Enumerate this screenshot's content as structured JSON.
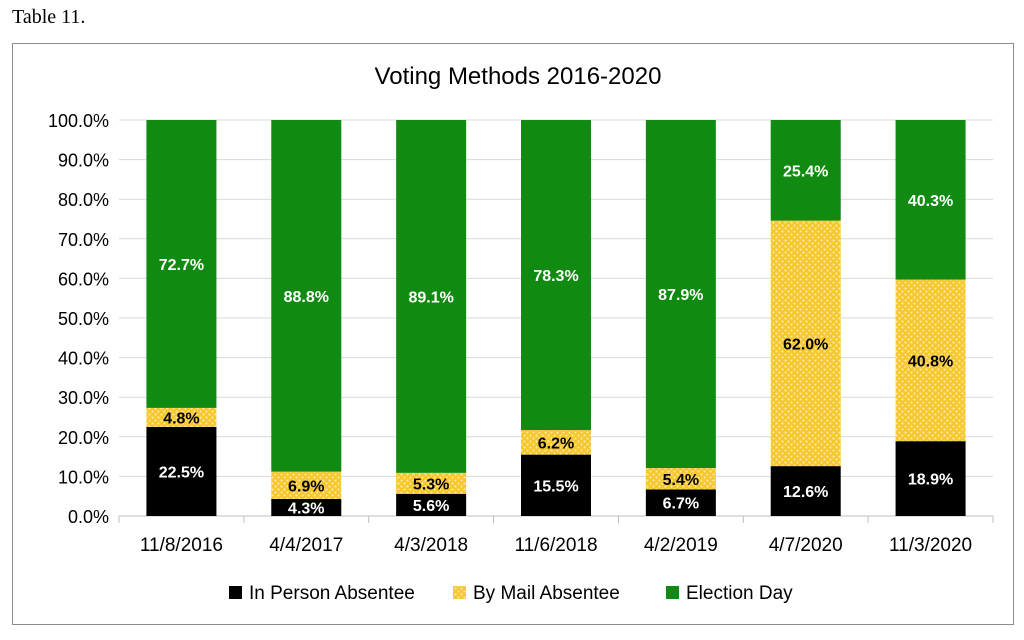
{
  "caption": "Table 11.",
  "colors": {
    "in_person": "#000000",
    "by_mail": "#f6c82e",
    "by_mail_dot": "#fde9a6",
    "election_day": "#108a10",
    "grid": "#d9d9d9",
    "axis": "#bfbfbf"
  },
  "chart_data": {
    "type": "bar",
    "stacked": true,
    "title": "Voting Methods 2016-2020",
    "xlabel": "",
    "ylabel": "",
    "ylim": [
      0,
      100
    ],
    "y_ticks": [
      "0.0%",
      "10.0%",
      "20.0%",
      "30.0%",
      "40.0%",
      "50.0%",
      "60.0%",
      "70.0%",
      "80.0%",
      "90.0%",
      "100.0%"
    ],
    "categories": [
      "11/8/2016",
      "4/4/2017",
      "4/3/2018",
      "11/6/2018",
      "4/2/2019",
      "4/7/2020",
      "11/3/2020"
    ],
    "series": [
      {
        "name": "In Person Absentee",
        "key": "in_person",
        "values": [
          22.5,
          4.3,
          5.6,
          15.5,
          6.7,
          12.6,
          18.9
        ],
        "labels": [
          "22.5%",
          "4.3%",
          "5.6%",
          "15.5%",
          "6.7%",
          "12.6%",
          "18.9%"
        ]
      },
      {
        "name": "By Mail Absentee",
        "key": "by_mail",
        "values": [
          4.8,
          6.9,
          5.3,
          6.2,
          5.4,
          62.0,
          40.8
        ],
        "labels": [
          "4.8%",
          "6.9%",
          "5.3%",
          "6.2%",
          "5.4%",
          "62.0%",
          "40.8%"
        ]
      },
      {
        "name": "Election Day",
        "key": "election_day",
        "values": [
          72.7,
          88.8,
          89.1,
          78.3,
          87.9,
          25.4,
          40.3
        ],
        "labels": [
          "72.7%",
          "88.8%",
          "89.1%",
          "78.3%",
          "87.9%",
          "25.4%",
          "40.3%"
        ]
      }
    ],
    "legend_position": "bottom"
  }
}
